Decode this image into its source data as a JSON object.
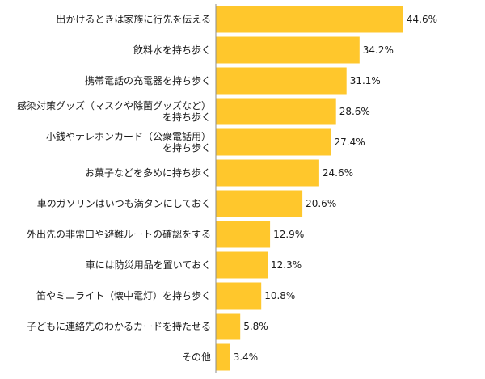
{
  "chart_data": {
    "type": "bar",
    "orientation": "horizontal",
    "bar_color": "#FFC72C",
    "value_suffix": "%",
    "xlim": [
      0,
      50
    ],
    "grid": false,
    "legend": "none",
    "categories": [
      [
        "出かけるときは家族に行先を伝える"
      ],
      [
        "飲料水を持ち歩く"
      ],
      [
        "携帯電話の充電器を持ち歩く"
      ],
      [
        "感染対策グッズ（マスクや除菌グッズなど）",
        "を持ち歩く"
      ],
      [
        "小銭やテレホンカード（公衆電話用）",
        "を持ち歩く"
      ],
      [
        "お菓子などを多めに持ち歩く"
      ],
      [
        "車のガソリンはいつも満タンにしておく"
      ],
      [
        "外出先の非常口や避難ルートの確認をする"
      ],
      [
        "車には防災用品を置いておく"
      ],
      [
        "笛やミニライト（懐中電灯）を持ち歩く"
      ],
      [
        "子どもに連絡先のわかるカードを持たせる"
      ],
      [
        "その他"
      ]
    ],
    "values": [
      44.6,
      34.2,
      31.1,
      28.6,
      27.4,
      24.6,
      20.6,
      12.9,
      12.3,
      10.8,
      5.8,
      3.4
    ],
    "value_labels": [
      "44.6%",
      "34.2%",
      "31.1%",
      "28.6%",
      "27.4%",
      "24.6%",
      "20.6%",
      "12.9%",
      "12.3%",
      "10.8%",
      "5.8%",
      "3.4%"
    ]
  }
}
